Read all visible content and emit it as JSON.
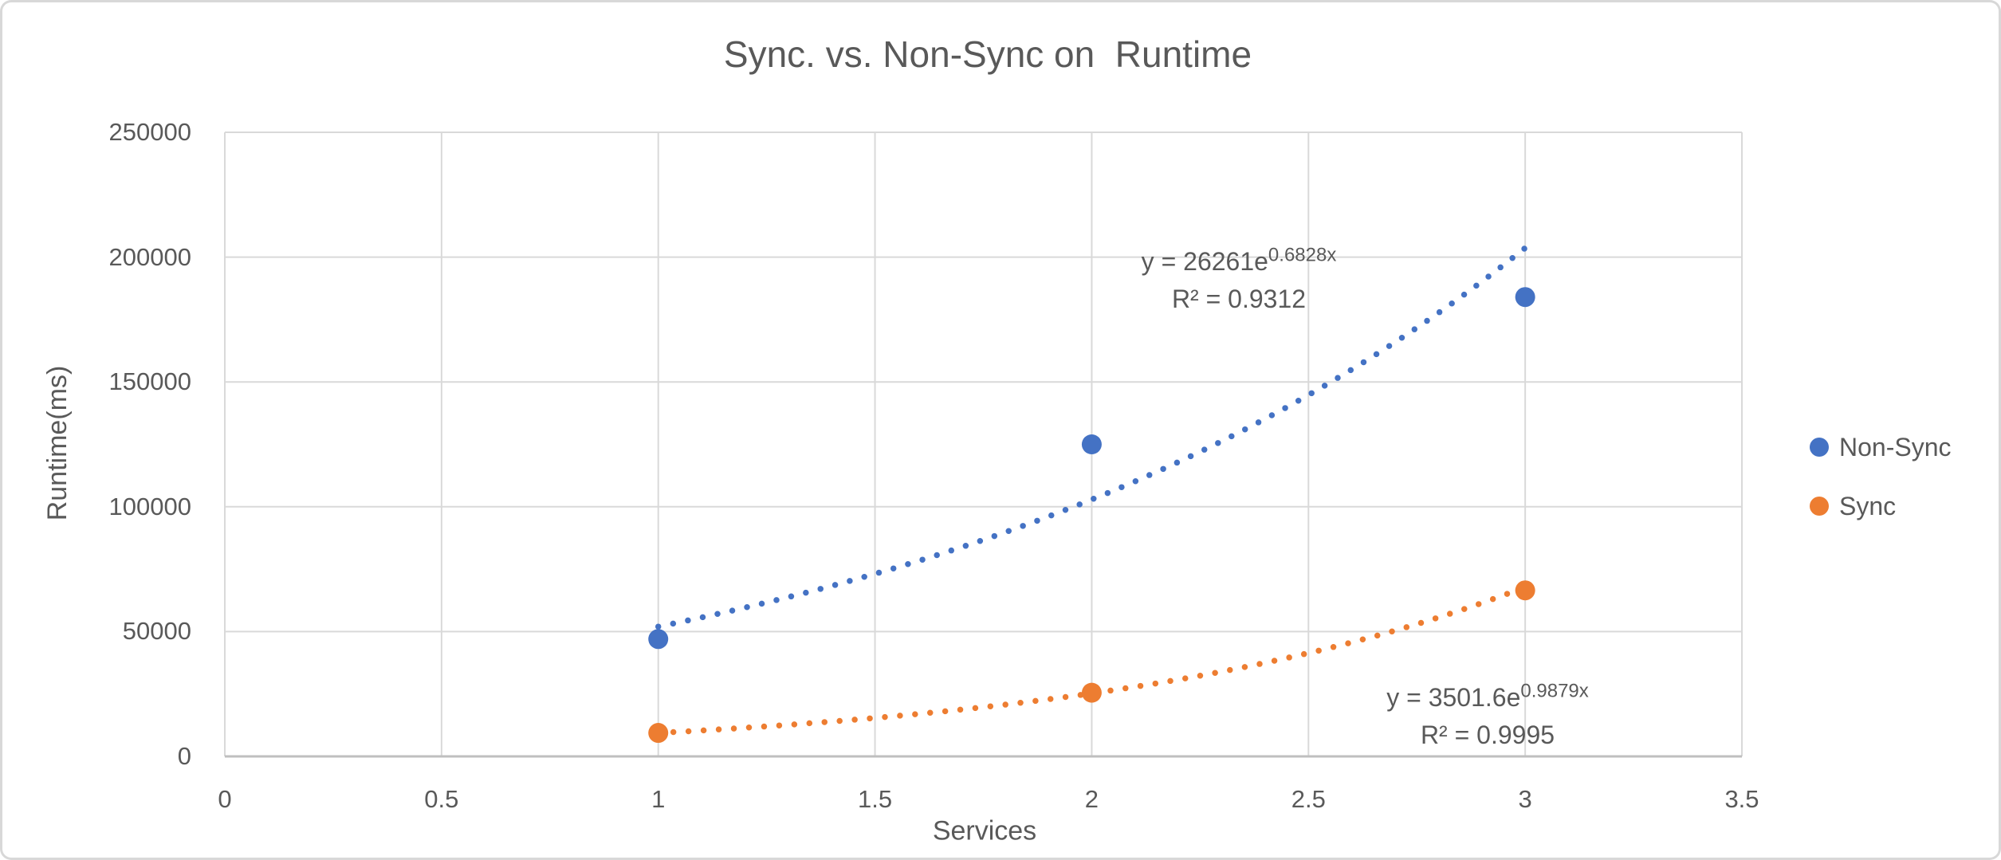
{
  "chart_data": {
    "type": "scatter",
    "title": "Sync. vs. Non-Sync on  Runtime",
    "xlabel": "Services",
    "ylabel": "Runtime(ms)",
    "xlim": [
      0,
      3.5
    ],
    "ylim": [
      0,
      250000
    ],
    "x_ticks": [
      "0",
      "0.5",
      "1",
      "1.5",
      "2",
      "2.5",
      "3",
      "3.5"
    ],
    "y_ticks": [
      "0",
      "50000",
      "100000",
      "150000",
      "200000",
      "250000"
    ],
    "grid": true,
    "legend_position": "right-middle",
    "series": [
      {
        "name": "Non-Sync",
        "color": "#4472C4",
        "points": [
          {
            "x": 1,
            "y": 47000
          },
          {
            "x": 2,
            "y": 125000
          },
          {
            "x": 3,
            "y": 184000
          }
        ],
        "trendline": {
          "type": "exponential",
          "a": 26261,
          "b": 0.6828,
          "x_start": 1,
          "x_end": 3.02,
          "equation_base": "y = 26261e",
          "equation_exponent": "0.6828x",
          "r_squared": "R² = 0.9312"
        }
      },
      {
        "name": "Sync",
        "color": "#ED7D31",
        "points": [
          {
            "x": 1,
            "y": 9400
          },
          {
            "x": 2,
            "y": 25500
          },
          {
            "x": 3,
            "y": 66500
          }
        ],
        "trendline": {
          "type": "exponential",
          "a": 3501.6,
          "b": 0.9879,
          "x_start": 1,
          "x_end": 3.02,
          "equation_base": "y = 3501.6e",
          "equation_exponent": "0.9879x",
          "r_squared": "R² = 0.9995"
        }
      }
    ]
  },
  "legend": {
    "items": [
      {
        "label": "Non-Sync",
        "color": "#4472C4"
      },
      {
        "label": "Sync",
        "color": "#ED7D31"
      }
    ]
  },
  "colors": {
    "text": "#595959",
    "gridline": "#D9D9D9",
    "axis_line": "#BFBFBF",
    "background": "#FFFFFF",
    "border": "#D8D8D8",
    "non_sync": "#4472C4",
    "sync": "#ED7D31"
  }
}
